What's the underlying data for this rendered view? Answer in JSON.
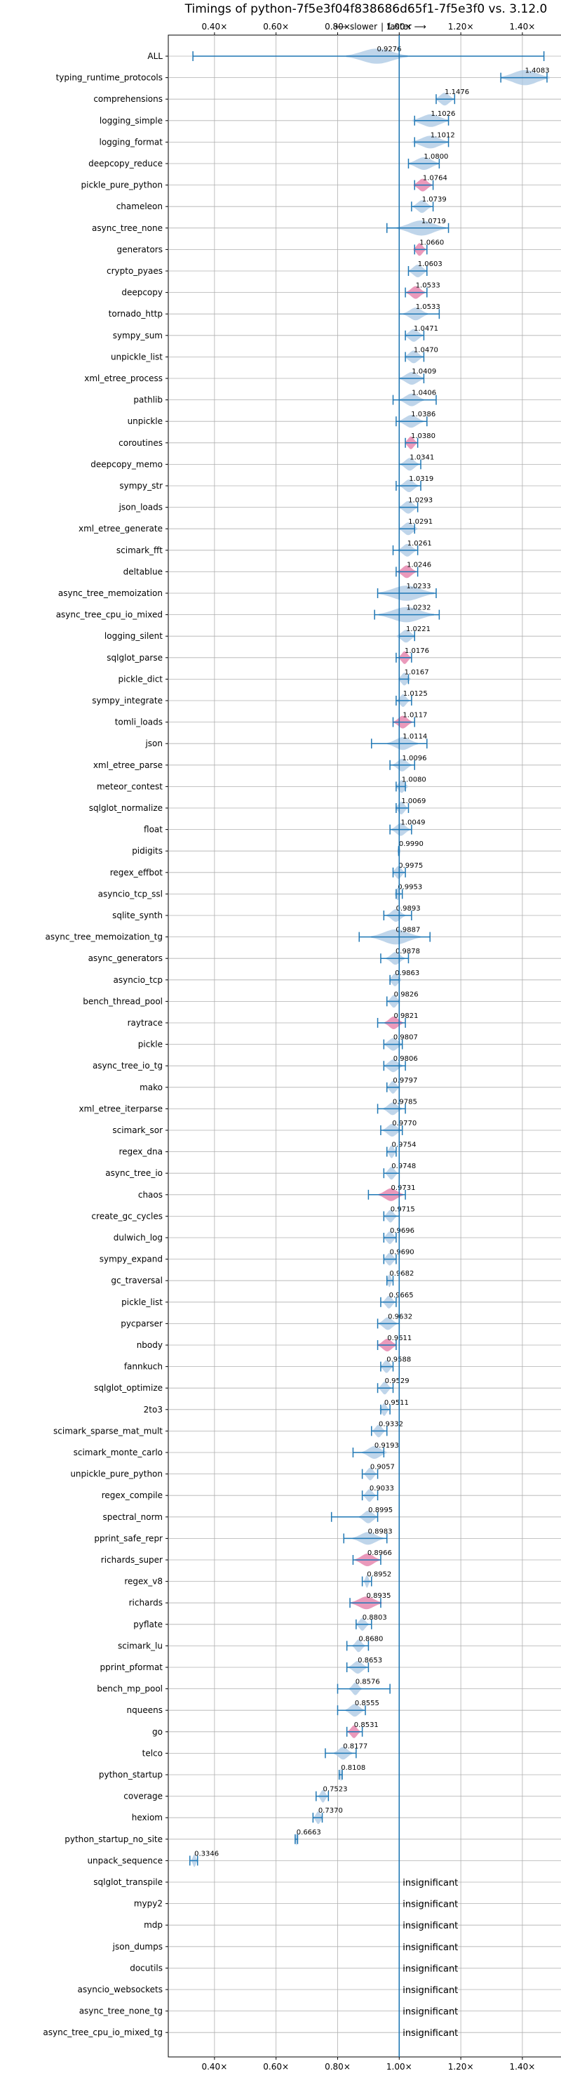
{
  "chart_data": {
    "type": "violin",
    "title": "Timings of python-7f5e3f04f838686d65f1-7f5e3f0 vs. 3.12.0",
    "direction_labels": {
      "slower": "⟵ slower",
      "faster": "faster ⟶"
    },
    "xlim": [
      0.25,
      1.53
    ],
    "xticks": [
      0.4,
      0.6,
      0.8,
      1.0,
      1.2,
      1.4
    ],
    "xtick_labels": [
      "0.40×",
      "0.60×",
      "0.80×",
      "1.00×",
      "1.20×",
      "1.40×"
    ],
    "reference_line": 1.0,
    "grid": true,
    "insignificant_label": "insignificant",
    "colors": {
      "significant": "#1f77b4",
      "highlight": "#e377a4",
      "fill": "#a9c7e3",
      "grid": "#b0b0b0"
    },
    "benchmarks": [
      {
        "name": "ALL",
        "value": 0.9276,
        "label": "0.9276",
        "min": 0.33,
        "max": 1.47,
        "width": 0.1
      },
      {
        "name": "typing_runtime_protocols",
        "value": 1.4083,
        "label": "1.4083",
        "min": 1.33,
        "max": 1.48,
        "width": 0.08
      },
      {
        "name": "comprehensions",
        "value": 1.1476,
        "label": "1.1476",
        "min": 1.12,
        "max": 1.18,
        "width": 0.03
      },
      {
        "name": "logging_simple",
        "value": 1.1026,
        "label": "1.1026",
        "min": 1.05,
        "max": 1.16,
        "width": 0.06
      },
      {
        "name": "logging_format",
        "value": 1.1012,
        "label": "1.1012",
        "min": 1.05,
        "max": 1.16,
        "width": 0.06
      },
      {
        "name": "deepcopy_reduce",
        "value": 1.08,
        "label": "1.0800",
        "min": 1.03,
        "max": 1.13,
        "width": 0.05
      },
      {
        "name": "pickle_pure_python",
        "value": 1.0764,
        "label": "1.0764",
        "min": 1.05,
        "max": 1.11,
        "width": 0.03,
        "highlight": true
      },
      {
        "name": "chameleon",
        "value": 1.0739,
        "label": "1.0739",
        "min": 1.04,
        "max": 1.11,
        "width": 0.03
      },
      {
        "name": "async_tree_none",
        "value": 1.0719,
        "label": "1.0719",
        "min": 0.96,
        "max": 1.16,
        "width": 0.08
      },
      {
        "name": "generators",
        "value": 1.066,
        "label": "1.0660",
        "min": 1.05,
        "max": 1.09,
        "width": 0.02,
        "highlight": true
      },
      {
        "name": "crypto_pyaes",
        "value": 1.0603,
        "label": "1.0603",
        "min": 1.03,
        "max": 1.09,
        "width": 0.03
      },
      {
        "name": "deepcopy",
        "value": 1.0533,
        "label": "1.0533",
        "min": 1.02,
        "max": 1.09,
        "width": 0.03,
        "highlight": true
      },
      {
        "name": "tornado_http",
        "value": 1.0533,
        "label": "1.0533",
        "min": 1.0,
        "max": 1.13,
        "width": 0.04
      },
      {
        "name": "sympy_sum",
        "value": 1.0471,
        "label": "1.0471",
        "min": 1.02,
        "max": 1.08,
        "width": 0.03
      },
      {
        "name": "unpickle_list",
        "value": 1.047,
        "label": "1.0470",
        "min": 1.02,
        "max": 1.08,
        "width": 0.03
      },
      {
        "name": "xml_etree_process",
        "value": 1.0409,
        "label": "1.0409",
        "min": 1.0,
        "max": 1.08,
        "width": 0.04
      },
      {
        "name": "pathlib",
        "value": 1.0406,
        "label": "1.0406",
        "min": 0.98,
        "max": 1.12,
        "width": 0.04
      },
      {
        "name": "unpickle",
        "value": 1.0386,
        "label": "1.0386",
        "min": 0.99,
        "max": 1.09,
        "width": 0.04
      },
      {
        "name": "coroutines",
        "value": 1.038,
        "label": "1.0380",
        "min": 1.02,
        "max": 1.06,
        "width": 0.02,
        "highlight": true
      },
      {
        "name": "deepcopy_memo",
        "value": 1.0341,
        "label": "1.0341",
        "min": 1.0,
        "max": 1.07,
        "width": 0.03
      },
      {
        "name": "sympy_str",
        "value": 1.0319,
        "label": "1.0319",
        "min": 0.99,
        "max": 1.07,
        "width": 0.03
      },
      {
        "name": "json_loads",
        "value": 1.0293,
        "label": "1.0293",
        "min": 1.0,
        "max": 1.06,
        "width": 0.03
      },
      {
        "name": "xml_etree_generate",
        "value": 1.0291,
        "label": "1.0291",
        "min": 1.0,
        "max": 1.05,
        "width": 0.03
      },
      {
        "name": "scimark_fft",
        "value": 1.0261,
        "label": "1.0261",
        "min": 0.98,
        "max": 1.06,
        "width": 0.03
      },
      {
        "name": "deltablue",
        "value": 1.0246,
        "label": "1.0246",
        "min": 0.99,
        "max": 1.06,
        "width": 0.03,
        "highlight": true
      },
      {
        "name": "async_tree_memoization",
        "value": 1.0233,
        "label": "1.0233",
        "min": 0.93,
        "max": 1.12,
        "width": 0.09
      },
      {
        "name": "async_tree_cpu_io_mixed",
        "value": 1.0232,
        "label": "1.0232",
        "min": 0.92,
        "max": 1.13,
        "width": 0.09
      },
      {
        "name": "logging_silent",
        "value": 1.0221,
        "label": "1.0221",
        "min": 1.0,
        "max": 1.05,
        "width": 0.03
      },
      {
        "name": "sqlglot_parse",
        "value": 1.0176,
        "label": "1.0176",
        "min": 0.99,
        "max": 1.04,
        "width": 0.02,
        "highlight": true
      },
      {
        "name": "pickle_dict",
        "value": 1.0167,
        "label": "1.0167",
        "min": 1.0,
        "max": 1.03,
        "width": 0.02
      },
      {
        "name": "sympy_integrate",
        "value": 1.0125,
        "label": "1.0125",
        "min": 0.99,
        "max": 1.04,
        "width": 0.02
      },
      {
        "name": "tomli_loads",
        "value": 1.0117,
        "label": "1.0117",
        "min": 0.98,
        "max": 1.05,
        "width": 0.03,
        "highlight": true
      },
      {
        "name": "json",
        "value": 1.0114,
        "label": "1.0114",
        "min": 0.91,
        "max": 1.09,
        "width": 0.05
      },
      {
        "name": "xml_etree_parse",
        "value": 1.0096,
        "label": "1.0096",
        "min": 0.97,
        "max": 1.05,
        "width": 0.03
      },
      {
        "name": "meteor_contest",
        "value": 1.008,
        "label": "1.0080",
        "min": 0.99,
        "max": 1.02,
        "width": 0.02
      },
      {
        "name": "sqlglot_normalize",
        "value": 1.0069,
        "label": "1.0069",
        "min": 0.99,
        "max": 1.03,
        "width": 0.02
      },
      {
        "name": "float",
        "value": 1.0049,
        "label": "1.0049",
        "min": 0.97,
        "max": 1.04,
        "width": 0.03
      },
      {
        "name": "pidigits",
        "value": 0.999,
        "label": "0.9990",
        "min": 0.998,
        "max": 1.0,
        "width": 0.005
      },
      {
        "name": "regex_effbot",
        "value": 0.9975,
        "label": "0.9975",
        "min": 0.98,
        "max": 1.02,
        "width": 0.02
      },
      {
        "name": "asyncio_tcp_ssl",
        "value": 0.9953,
        "label": "0.9953",
        "min": 0.99,
        "max": 1.01,
        "width": 0.01
      },
      {
        "name": "sqlite_synth",
        "value": 0.9893,
        "label": "0.9893",
        "min": 0.95,
        "max": 1.04,
        "width": 0.03
      },
      {
        "name": "async_tree_memoization_tg",
        "value": 0.9887,
        "label": "0.9887",
        "min": 0.87,
        "max": 1.1,
        "width": 0.08
      },
      {
        "name": "async_generators",
        "value": 0.9878,
        "label": "0.9878",
        "min": 0.94,
        "max": 1.03,
        "width": 0.03
      },
      {
        "name": "asyncio_tcp",
        "value": 0.9863,
        "label": "0.9863",
        "min": 0.97,
        "max": 1.0,
        "width": 0.02
      },
      {
        "name": "bench_thread_pool",
        "value": 0.9826,
        "label": "0.9826",
        "min": 0.96,
        "max": 1.0,
        "width": 0.02
      },
      {
        "name": "raytrace",
        "value": 0.9821,
        "label": "0.9821",
        "min": 0.93,
        "max": 1.02,
        "width": 0.03,
        "highlight": true
      },
      {
        "name": "pickle",
        "value": 0.9807,
        "label": "0.9807",
        "min": 0.95,
        "max": 1.01,
        "width": 0.03
      },
      {
        "name": "async_tree_io_tg",
        "value": 0.9806,
        "label": "0.9806",
        "min": 0.95,
        "max": 1.02,
        "width": 0.03
      },
      {
        "name": "mako",
        "value": 0.9797,
        "label": "0.9797",
        "min": 0.96,
        "max": 1.0,
        "width": 0.02
      },
      {
        "name": "xml_etree_iterparse",
        "value": 0.9785,
        "label": "0.9785",
        "min": 0.93,
        "max": 1.02,
        "width": 0.03
      },
      {
        "name": "scimark_sor",
        "value": 0.977,
        "label": "0.9770",
        "min": 0.94,
        "max": 1.01,
        "width": 0.03
      },
      {
        "name": "regex_dna",
        "value": 0.9754,
        "label": "0.9754",
        "min": 0.96,
        "max": 0.99,
        "width": 0.015
      },
      {
        "name": "async_tree_io",
        "value": 0.9748,
        "label": "0.9748",
        "min": 0.95,
        "max": 1.0,
        "width": 0.02
      },
      {
        "name": "chaos",
        "value": 0.9731,
        "label": "0.9731",
        "min": 0.9,
        "max": 1.02,
        "width": 0.04,
        "highlight": true
      },
      {
        "name": "create_gc_cycles",
        "value": 0.9715,
        "label": "0.9715",
        "min": 0.95,
        "max": 1.0,
        "width": 0.02
      },
      {
        "name": "dulwich_log",
        "value": 0.9696,
        "label": "0.9696",
        "min": 0.95,
        "max": 0.99,
        "width": 0.02
      },
      {
        "name": "sympy_expand",
        "value": 0.969,
        "label": "0.9690",
        "min": 0.95,
        "max": 0.99,
        "width": 0.02
      },
      {
        "name": "gc_traversal",
        "value": 0.9682,
        "label": "0.9682",
        "min": 0.96,
        "max": 0.98,
        "width": 0.01
      },
      {
        "name": "pickle_list",
        "value": 0.9665,
        "label": "0.9665",
        "min": 0.94,
        "max": 0.99,
        "width": 0.02
      },
      {
        "name": "pycparser",
        "value": 0.9632,
        "label": "0.9632",
        "min": 0.93,
        "max": 1.0,
        "width": 0.03
      },
      {
        "name": "nbody",
        "value": 0.9611,
        "label": "0.9611",
        "min": 0.93,
        "max": 0.99,
        "width": 0.03,
        "highlight": true
      },
      {
        "name": "fannkuch",
        "value": 0.9588,
        "label": "0.9588",
        "min": 0.94,
        "max": 0.98,
        "width": 0.02
      },
      {
        "name": "sqlglot_optimize",
        "value": 0.9529,
        "label": "0.9529",
        "min": 0.93,
        "max": 0.98,
        "width": 0.02
      },
      {
        "name": "2to3",
        "value": 0.9511,
        "label": "0.9511",
        "min": 0.94,
        "max": 0.97,
        "width": 0.015
      },
      {
        "name": "scimark_sparse_mat_mult",
        "value": 0.9332,
        "label": "0.9332",
        "min": 0.91,
        "max": 0.96,
        "width": 0.02
      },
      {
        "name": "scimark_monte_carlo",
        "value": 0.9193,
        "label": "0.9193",
        "min": 0.85,
        "max": 0.95,
        "width": 0.04
      },
      {
        "name": "unpickle_pure_python",
        "value": 0.9057,
        "label": "0.9057",
        "min": 0.88,
        "max": 0.93,
        "width": 0.02
      },
      {
        "name": "regex_compile",
        "value": 0.9033,
        "label": "0.9033",
        "min": 0.88,
        "max": 0.93,
        "width": 0.02
      },
      {
        "name": "spectral_norm",
        "value": 0.8995,
        "label": "0.8995",
        "min": 0.78,
        "max": 0.93,
        "width": 0.03
      },
      {
        "name": "pprint_safe_repr",
        "value": 0.8983,
        "label": "0.8983",
        "min": 0.82,
        "max": 0.96,
        "width": 0.05
      },
      {
        "name": "richards_super",
        "value": 0.8966,
        "label": "0.8966",
        "min": 0.85,
        "max": 0.94,
        "width": 0.04,
        "highlight": true
      },
      {
        "name": "regex_v8",
        "value": 0.8952,
        "label": "0.8952",
        "min": 0.88,
        "max": 0.91,
        "width": 0.01
      },
      {
        "name": "richards",
        "value": 0.8935,
        "label": "0.8935",
        "min": 0.84,
        "max": 0.94,
        "width": 0.05,
        "highlight": true
      },
      {
        "name": "pyflate",
        "value": 0.8803,
        "label": "0.8803",
        "min": 0.86,
        "max": 0.91,
        "width": 0.02
      },
      {
        "name": "scimark_lu",
        "value": 0.868,
        "label": "0.8680",
        "min": 0.83,
        "max": 0.9,
        "width": 0.02
      },
      {
        "name": "pprint_pformat",
        "value": 0.8653,
        "label": "0.8653",
        "min": 0.83,
        "max": 0.9,
        "width": 0.03
      },
      {
        "name": "bench_mp_pool",
        "value": 0.8576,
        "label": "0.8576",
        "min": 0.8,
        "max": 0.97,
        "width": 0.02
      },
      {
        "name": "nqueens",
        "value": 0.8555,
        "label": "0.8555",
        "min": 0.8,
        "max": 0.89,
        "width": 0.03
      },
      {
        "name": "go",
        "value": 0.8531,
        "label": "0.8531",
        "min": 0.83,
        "max": 0.88,
        "width": 0.02,
        "highlight": true
      },
      {
        "name": "telco",
        "value": 0.8177,
        "label": "0.8177",
        "min": 0.76,
        "max": 0.86,
        "width": 0.03
      },
      {
        "name": "python_startup",
        "value": 0.8108,
        "label": "0.8108",
        "min": 0.805,
        "max": 0.815,
        "width": 0.005
      },
      {
        "name": "coverage",
        "value": 0.7523,
        "label": "0.7523",
        "min": 0.73,
        "max": 0.77,
        "width": 0.015
      },
      {
        "name": "hexiom",
        "value": 0.737,
        "label": "0.7370",
        "min": 0.72,
        "max": 0.75,
        "width": 0.015
      },
      {
        "name": "python_startup_no_site",
        "value": 0.6663,
        "label": "0.6663",
        "min": 0.662,
        "max": 0.67,
        "width": 0.004
      },
      {
        "name": "unpack_sequence",
        "value": 0.3346,
        "label": "0.3346",
        "min": 0.32,
        "max": 0.345,
        "width": 0.01
      },
      {
        "name": "sqlglot_transpile",
        "insignificant": true
      },
      {
        "name": "mypy2",
        "insignificant": true
      },
      {
        "name": "mdp",
        "insignificant": true
      },
      {
        "name": "json_dumps",
        "insignificant": true
      },
      {
        "name": "docutils",
        "insignificant": true
      },
      {
        "name": "asyncio_websockets",
        "insignificant": true
      },
      {
        "name": "async_tree_none_tg",
        "insignificant": true
      },
      {
        "name": "async_tree_cpu_io_mixed_tg",
        "insignificant": true
      }
    ]
  }
}
